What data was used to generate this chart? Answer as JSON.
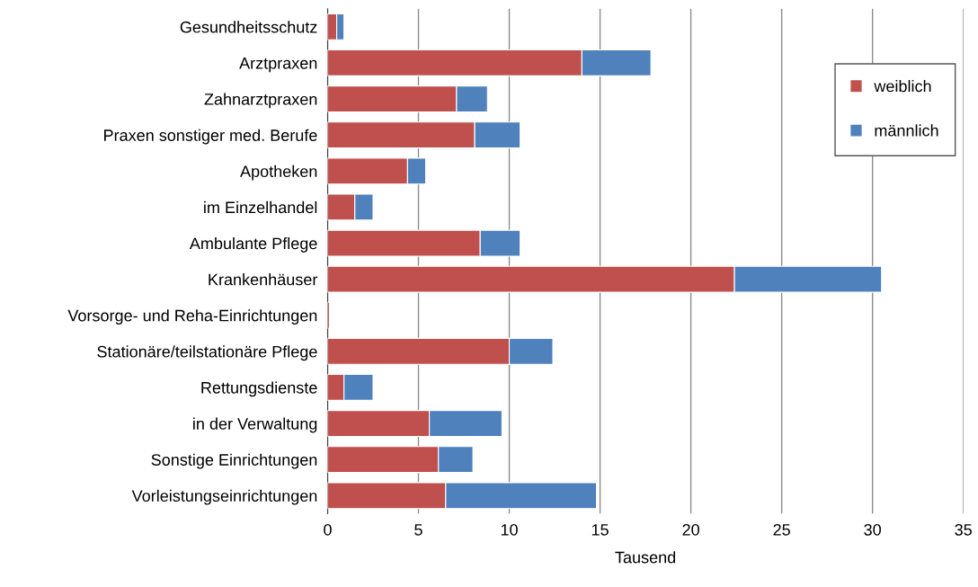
{
  "chart_data": {
    "type": "bar",
    "orientation": "horizontal",
    "stacked": true,
    "xlabel": "Tausend",
    "categories": [
      "Gesundheitsschutz",
      "Arztpraxen",
      "Zahnarztpraxen",
      "Praxen sonstiger med. Berufe",
      "Apotheken",
      "im Einzelhandel",
      "Ambulante Pflege",
      "Krankenhäuser",
      "Vorsorge- und Reha-Einrichtungen",
      "Stationäre/teilstationäre Pflege",
      "Rettungsdienste",
      "in der Verwaltung",
      "Sonstige Einrichtungen",
      "Vorleistungseinrichtungen"
    ],
    "series": [
      {
        "name": "weiblich",
        "color": "#c0504d",
        "values": [
          0.5,
          14.0,
          7.1,
          8.1,
          4.4,
          1.5,
          8.4,
          22.4,
          0.1,
          10.0,
          0.9,
          5.6,
          6.1,
          6.5
        ]
      },
      {
        "name": "männlich",
        "color": "#4f81bd",
        "values": [
          0.4,
          3.8,
          1.7,
          2.5,
          1.0,
          1.0,
          2.2,
          8.1,
          null,
          2.4,
          1.6,
          4.0,
          1.9,
          8.3
        ]
      }
    ],
    "xlim": [
      0,
      35
    ],
    "xticks": [
      0,
      5,
      10,
      15,
      20,
      25,
      30,
      35
    ],
    "grid": "x",
    "legend": "right"
  }
}
